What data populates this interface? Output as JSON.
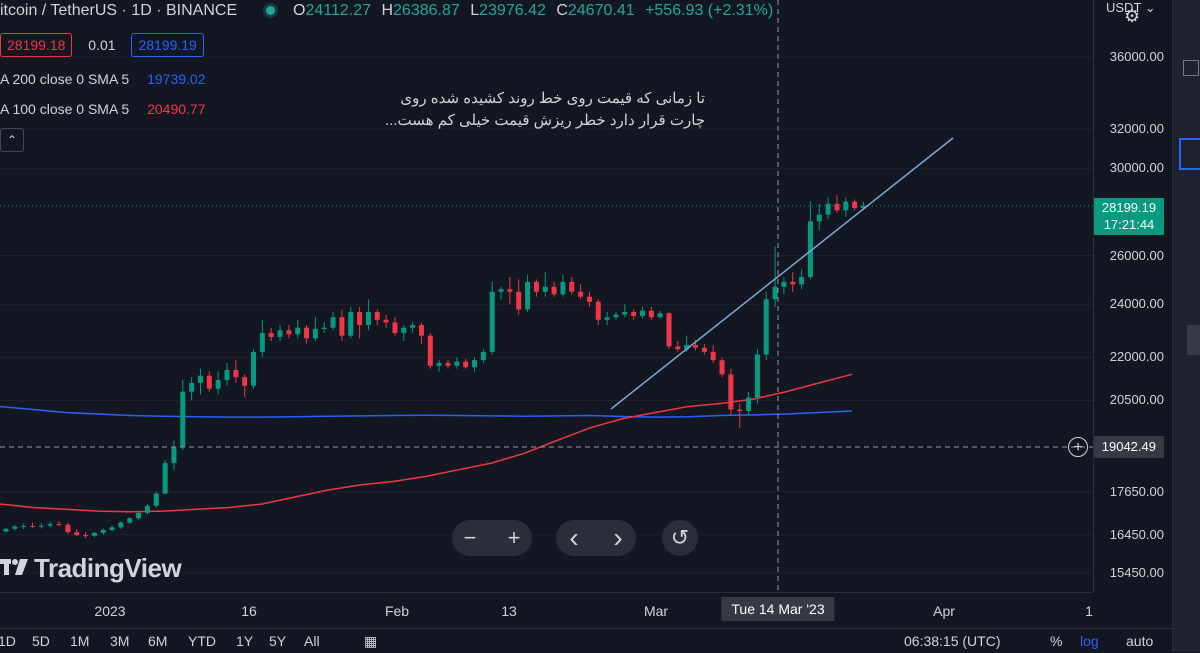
{
  "header": {
    "title": "itcoin / TetherUS · 1D · BINANCE",
    "open_k": "O",
    "open_v": "24112.27",
    "high_k": "H",
    "high_v": "26386.87",
    "low_k": "L",
    "low_v": "23976.42",
    "close_k": "C",
    "close_v": "24670.41",
    "change": "+556.93 (+2.31%)",
    "sell_price": "28199.18",
    "spread": "0.01",
    "buy_price": "28199.19",
    "ma200_label": "A 200 close 0 SMA 5",
    "ma200_value": "19739.02",
    "ma100_label": "A 100 close 0 SMA 5",
    "ma100_value": "20490.77",
    "collapse_icon": "chevron-up-icon"
  },
  "annotations": {
    "note_line1": "تا زمانی که قیمت روی خط روند کشیده شده روی",
    "note_line2": "چارت قرار دارد خطر ریزش قیمت خیلی کم هست...",
    "note_small": "تا زمانی که قیمت روی خط رو"
  },
  "price_scale": {
    "currency": "USDT",
    "ticks": [
      "36000.00",
      "32000.00",
      "30000.00",
      "26000.00",
      "24000.00",
      "22000.00",
      "20500.00",
      "17650.00",
      "16450.00",
      "15450.00"
    ],
    "last_price": "28199.19",
    "countdown": "17:21:44",
    "crosshair_price": "19042.49"
  },
  "time_scale": {
    "labels": [
      "2023",
      "16",
      "Feb",
      "13",
      "Mar",
      "Apr",
      "1"
    ],
    "crosshair_date": "Tue 14 Mar '23"
  },
  "nav": {
    "zoom_out": "−",
    "zoom_in": "+",
    "scroll_left": "‹",
    "scroll_right": "›",
    "reset": "↺"
  },
  "branding": {
    "logo_text": "TradingView"
  },
  "bottom_bar": {
    "ranges": [
      "1D",
      "5D",
      "1M",
      "3M",
      "6M",
      "YTD",
      "1Y",
      "5Y",
      "All"
    ],
    "clock": "06:38:15 (UTC)",
    "percent": "%",
    "log": "log",
    "auto": "auto"
  },
  "colors": {
    "up": "#089981",
    "down": "#f23645",
    "ma200": "#2962ff",
    "ma100": "#f23645",
    "trendline": "#7fa9d6",
    "background": "#131722"
  },
  "chart_data": {
    "type": "candlestick",
    "symbol": "BTCUSDT",
    "interval": "1D",
    "candles": [
      {
        "o": 16540,
        "h": 16630,
        "l": 16500,
        "c": 16610
      },
      {
        "o": 16610,
        "h": 16720,
        "l": 16560,
        "c": 16670
      },
      {
        "o": 16670,
        "h": 16760,
        "l": 16600,
        "c": 16690
      },
      {
        "o": 16690,
        "h": 16780,
        "l": 16640,
        "c": 16680
      },
      {
        "o": 16680,
        "h": 16760,
        "l": 16620,
        "c": 16700
      },
      {
        "o": 16700,
        "h": 16800,
        "l": 16650,
        "c": 16740
      },
      {
        "o": 16740,
        "h": 16820,
        "l": 16690,
        "c": 16720
      },
      {
        "o": 16720,
        "h": 16780,
        "l": 16480,
        "c": 16520
      },
      {
        "o": 16520,
        "h": 16600,
        "l": 16420,
        "c": 16440
      },
      {
        "o": 16440,
        "h": 16520,
        "l": 16360,
        "c": 16420
      },
      {
        "o": 16420,
        "h": 16540,
        "l": 16380,
        "c": 16500
      },
      {
        "o": 16500,
        "h": 16620,
        "l": 16450,
        "c": 16580
      },
      {
        "o": 16580,
        "h": 16700,
        "l": 16540,
        "c": 16650
      },
      {
        "o": 16650,
        "h": 16820,
        "l": 16600,
        "c": 16780
      },
      {
        "o": 16780,
        "h": 16930,
        "l": 16740,
        "c": 16900
      },
      {
        "o": 16900,
        "h": 17080,
        "l": 16860,
        "c": 17050
      },
      {
        "o": 17050,
        "h": 17300,
        "l": 17000,
        "c": 17250
      },
      {
        "o": 17250,
        "h": 17650,
        "l": 17200,
        "c": 17600
      },
      {
        "o": 17600,
        "h": 18600,
        "l": 17580,
        "c": 18500
      },
      {
        "o": 18500,
        "h": 19200,
        "l": 18300,
        "c": 19000
      },
      {
        "o": 19000,
        "h": 21200,
        "l": 18900,
        "c": 20800
      },
      {
        "o": 20800,
        "h": 21300,
        "l": 20500,
        "c": 21100
      },
      {
        "o": 21100,
        "h": 21600,
        "l": 20700,
        "c": 21350
      },
      {
        "o": 21350,
        "h": 21500,
        "l": 20800,
        "c": 20900
      },
      {
        "o": 20900,
        "h": 21500,
        "l": 20700,
        "c": 21200
      },
      {
        "o": 21200,
        "h": 21800,
        "l": 21000,
        "c": 21550
      },
      {
        "o": 21550,
        "h": 21900,
        "l": 21100,
        "c": 21300
      },
      {
        "o": 21300,
        "h": 21400,
        "l": 20600,
        "c": 21000
      },
      {
        "o": 21000,
        "h": 22300,
        "l": 20900,
        "c": 22200
      },
      {
        "o": 22200,
        "h": 23400,
        "l": 22000,
        "c": 22900
      },
      {
        "o": 22900,
        "h": 23100,
        "l": 22600,
        "c": 22750
      },
      {
        "o": 22750,
        "h": 23200,
        "l": 22600,
        "c": 23000
      },
      {
        "o": 23000,
        "h": 23200,
        "l": 22700,
        "c": 22850
      },
      {
        "o": 22850,
        "h": 23400,
        "l": 22700,
        "c": 23100
      },
      {
        "o": 23100,
        "h": 23200,
        "l": 22500,
        "c": 22700
      },
      {
        "o": 22700,
        "h": 23500,
        "l": 22600,
        "c": 23050
      },
      {
        "o": 23050,
        "h": 23300,
        "l": 22900,
        "c": 23100
      },
      {
        "o": 23100,
        "h": 23700,
        "l": 23000,
        "c": 23500
      },
      {
        "o": 23500,
        "h": 23800,
        "l": 22600,
        "c": 22800
      },
      {
        "o": 22800,
        "h": 23900,
        "l": 22700,
        "c": 23700
      },
      {
        "o": 23700,
        "h": 23900,
        "l": 22700,
        "c": 23200
      },
      {
        "o": 23200,
        "h": 24200,
        "l": 23000,
        "c": 23700
      },
      {
        "o": 23700,
        "h": 23800,
        "l": 23200,
        "c": 23400
      },
      {
        "o": 23400,
        "h": 23600,
        "l": 23100,
        "c": 23300
      },
      {
        "o": 23300,
        "h": 23500,
        "l": 22800,
        "c": 22900
      },
      {
        "o": 22900,
        "h": 23200,
        "l": 22600,
        "c": 23100
      },
      {
        "o": 23100,
        "h": 23300,
        "l": 22900,
        "c": 23200
      },
      {
        "o": 23200,
        "h": 23300,
        "l": 22500,
        "c": 22800
      },
      {
        "o": 22800,
        "h": 22900,
        "l": 21600,
        "c": 21700
      },
      {
        "o": 21700,
        "h": 21900,
        "l": 21500,
        "c": 21800
      },
      {
        "o": 21800,
        "h": 21900,
        "l": 21600,
        "c": 21700
      },
      {
        "o": 21700,
        "h": 22000,
        "l": 21600,
        "c": 21850
      },
      {
        "o": 21850,
        "h": 21950,
        "l": 21600,
        "c": 21650
      },
      {
        "o": 21650,
        "h": 22000,
        "l": 21500,
        "c": 21900
      },
      {
        "o": 21900,
        "h": 22300,
        "l": 21800,
        "c": 22200
      },
      {
        "o": 22200,
        "h": 24900,
        "l": 22100,
        "c": 24500
      },
      {
        "o": 24500,
        "h": 24700,
        "l": 24200,
        "c": 24600
      },
      {
        "o": 24600,
        "h": 25100,
        "l": 24000,
        "c": 24500
      },
      {
        "o": 24500,
        "h": 25000,
        "l": 23600,
        "c": 23800
      },
      {
        "o": 23800,
        "h": 25200,
        "l": 23700,
        "c": 24900
      },
      {
        "o": 24900,
        "h": 25000,
        "l": 24300,
        "c": 24500
      },
      {
        "o": 24500,
        "h": 25300,
        "l": 24300,
        "c": 24700
      },
      {
        "o": 24700,
        "h": 24900,
        "l": 24300,
        "c": 24400
      },
      {
        "o": 24400,
        "h": 25200,
        "l": 24300,
        "c": 24900
      },
      {
        "o": 24900,
        "h": 25100,
        "l": 24400,
        "c": 24500
      },
      {
        "o": 24500,
        "h": 24800,
        "l": 24200,
        "c": 24300
      },
      {
        "o": 24300,
        "h": 24500,
        "l": 23900,
        "c": 24100
      },
      {
        "o": 24100,
        "h": 24200,
        "l": 23200,
        "c": 23400
      },
      {
        "o": 23400,
        "h": 23700,
        "l": 23200,
        "c": 23500
      },
      {
        "o": 23500,
        "h": 23700,
        "l": 23400,
        "c": 23600
      },
      {
        "o": 23600,
        "h": 24000,
        "l": 23500,
        "c": 23700
      },
      {
        "o": 23700,
        "h": 23800,
        "l": 23400,
        "c": 23550
      },
      {
        "o": 23550,
        "h": 23900,
        "l": 23450,
        "c": 23750
      },
      {
        "o": 23750,
        "h": 23900,
        "l": 23400,
        "c": 23500
      },
      {
        "o": 23500,
        "h": 23750,
        "l": 23450,
        "c": 23650
      },
      {
        "o": 23650,
        "h": 23700,
        "l": 22300,
        "c": 22400
      },
      {
        "o": 22400,
        "h": 22600,
        "l": 22200,
        "c": 22300
      },
      {
        "o": 22300,
        "h": 22800,
        "l": 22200,
        "c": 22450
      },
      {
        "o": 22450,
        "h": 22650,
        "l": 22250,
        "c": 22350
      },
      {
        "o": 22350,
        "h": 22500,
        "l": 22100,
        "c": 22200
      },
      {
        "o": 22200,
        "h": 22450,
        "l": 21800,
        "c": 21900
      },
      {
        "o": 21900,
        "h": 22000,
        "l": 21300,
        "c": 21400
      },
      {
        "o": 21400,
        "h": 21600,
        "l": 20000,
        "c": 20200
      },
      {
        "o": 20200,
        "h": 20400,
        "l": 19600,
        "c": 20150
      },
      {
        "o": 20150,
        "h": 20800,
        "l": 20000,
        "c": 20600
      },
      {
        "o": 20600,
        "h": 22300,
        "l": 20400,
        "c": 22100
      },
      {
        "o": 22100,
        "h": 24500,
        "l": 21900,
        "c": 24200
      },
      {
        "o": 24200,
        "h": 26400,
        "l": 23900,
        "c": 24700
      },
      {
        "o": 24700,
        "h": 25100,
        "l": 24400,
        "c": 24900
      },
      {
        "o": 24900,
        "h": 25300,
        "l": 24500,
        "c": 24800
      },
      {
        "o": 24800,
        "h": 25400,
        "l": 24600,
        "c": 25100
      },
      {
        "o": 25100,
        "h": 28400,
        "l": 25000,
        "c": 27500
      },
      {
        "o": 27500,
        "h": 28300,
        "l": 27100,
        "c": 27800
      },
      {
        "o": 27800,
        "h": 28600,
        "l": 27600,
        "c": 28300
      },
      {
        "o": 28300,
        "h": 28700,
        "l": 27900,
        "c": 28000
      },
      {
        "o": 28000,
        "h": 28600,
        "l": 27700,
        "c": 28400
      },
      {
        "o": 28400,
        "h": 28500,
        "l": 28000,
        "c": 28100
      },
      {
        "o": 28100,
        "h": 28400,
        "l": 28000,
        "c": 28199.19
      }
    ],
    "sma200": [
      20300,
      20200,
      20100,
      20050,
      20000,
      19980,
      19960,
      19950,
      19950,
      19960,
      19980,
      19990,
      20000,
      20010,
      20000,
      19990,
      19980,
      19990,
      20000,
      19970,
      19950,
      19960,
      20000,
      20020,
      20050,
      20100,
      20150
    ],
    "sma100": [
      17300,
      17200,
      17150,
      17100,
      17080,
      17100,
      17150,
      17200,
      17300,
      17500,
      17700,
      17850,
      17950,
      18100,
      18300,
      18500,
      18800,
      19200,
      19600,
      19900,
      20100,
      20300,
      20400,
      20550,
      20800,
      21100,
      21400
    ]
  }
}
